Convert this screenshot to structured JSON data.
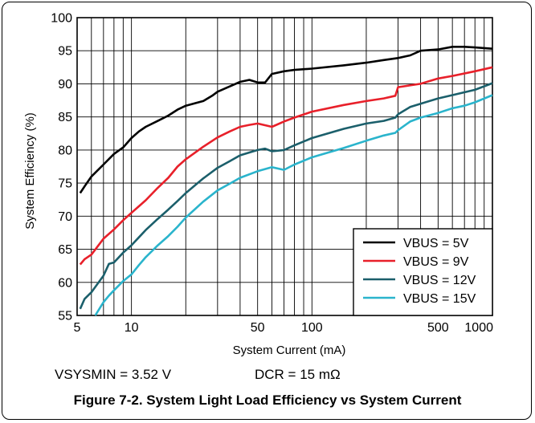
{
  "figure": {
    "notes": [
      "VSYSMIN = 3.52 V",
      "DCR = 15 mΩ"
    ],
    "caption": "Figure 7-2. System Light Load Efficiency vs System Current"
  },
  "chart_data": {
    "type": "line",
    "title": "",
    "xlabel": "System Current (mA)",
    "ylabel": "System Efficiency (%)",
    "xscale": "log",
    "xlim": [
      5,
      1000
    ],
    "ylim": [
      55,
      100
    ],
    "xticks": [
      5,
      10,
      50,
      100,
      500,
      1000
    ],
    "yticks": [
      55,
      60,
      65,
      70,
      75,
      80,
      85,
      90,
      95,
      100
    ],
    "grid": true,
    "legend": "bottom-right",
    "series": [
      {
        "name": "VBUS = 5V",
        "color": "#000000",
        "points": [
          [
            5.2,
            73.5
          ],
          [
            5.5,
            74.5
          ],
          [
            6,
            76
          ],
          [
            7,
            77.8
          ],
          [
            8,
            79.4
          ],
          [
            9,
            80.4
          ],
          [
            10,
            81.8
          ],
          [
            11,
            82.8
          ],
          [
            12,
            83.5
          ],
          [
            14,
            84.4
          ],
          [
            16,
            85.2
          ],
          [
            18,
            86.1
          ],
          [
            20,
            86.7
          ],
          [
            25,
            87.4
          ],
          [
            28,
            88.2
          ],
          [
            30,
            88.8
          ],
          [
            35,
            89.6
          ],
          [
            40,
            90.3
          ],
          [
            45,
            90.6
          ],
          [
            50,
            90.2
          ],
          [
            55,
            90.2
          ],
          [
            60,
            91.5
          ],
          [
            70,
            91.9
          ],
          [
            80,
            92.1
          ],
          [
            100,
            92.3
          ],
          [
            150,
            92.8
          ],
          [
            200,
            93.2
          ],
          [
            250,
            93.6
          ],
          [
            300,
            93.9
          ],
          [
            350,
            94.3
          ],
          [
            400,
            95
          ],
          [
            500,
            95.2
          ],
          [
            600,
            95.6
          ],
          [
            700,
            95.6
          ],
          [
            800,
            95.5
          ],
          [
            1000,
            95.3
          ]
        ]
      },
      {
        "name": "VBUS = 9V",
        "color": "#e8202a",
        "points": [
          [
            5.2,
            62.7
          ],
          [
            5.5,
            63.5
          ],
          [
            6,
            64.2
          ],
          [
            7,
            66.6
          ],
          [
            8,
            68
          ],
          [
            9,
            69.4
          ],
          [
            10,
            70.5
          ],
          [
            11,
            71.5
          ],
          [
            12,
            72.4
          ],
          [
            14,
            74.3
          ],
          [
            16,
            75.8
          ],
          [
            18,
            77.5
          ],
          [
            20,
            78.6
          ],
          [
            25,
            80.5
          ],
          [
            30,
            81.9
          ],
          [
            35,
            82.8
          ],
          [
            40,
            83.5
          ],
          [
            45,
            83.8
          ],
          [
            50,
            84
          ],
          [
            60,
            83.5
          ],
          [
            70,
            84.3
          ],
          [
            80,
            84.9
          ],
          [
            100,
            85.8
          ],
          [
            150,
            86.8
          ],
          [
            200,
            87.4
          ],
          [
            250,
            87.8
          ],
          [
            290,
            88.2
          ],
          [
            300,
            89.5
          ],
          [
            400,
            90
          ],
          [
            500,
            90.8
          ],
          [
            600,
            91.2
          ],
          [
            800,
            91.9
          ],
          [
            1000,
            92.5
          ]
        ]
      },
      {
        "name": "VBUS = 12V",
        "color": "#1b5f6b",
        "points": [
          [
            5.2,
            56
          ],
          [
            5.5,
            57.5
          ],
          [
            6,
            58.5
          ],
          [
            7,
            61
          ],
          [
            7.5,
            62.8
          ],
          [
            8,
            63
          ],
          [
            9,
            64.5
          ],
          [
            10,
            65.6
          ],
          [
            11,
            66.8
          ],
          [
            12,
            67.9
          ],
          [
            14,
            69.6
          ],
          [
            16,
            71
          ],
          [
            18,
            72.3
          ],
          [
            20,
            73.5
          ],
          [
            25,
            75.7
          ],
          [
            30,
            77.3
          ],
          [
            35,
            78.3
          ],
          [
            40,
            79.2
          ],
          [
            50,
            80
          ],
          [
            55,
            80.2
          ],
          [
            60,
            79.8
          ],
          [
            70,
            80
          ],
          [
            80,
            80.7
          ],
          [
            100,
            81.8
          ],
          [
            150,
            83.2
          ],
          [
            200,
            84
          ],
          [
            250,
            84.4
          ],
          [
            290,
            84.9
          ],
          [
            300,
            85.4
          ],
          [
            350,
            86.5
          ],
          [
            400,
            87
          ],
          [
            500,
            87.8
          ],
          [
            600,
            88.3
          ],
          [
            800,
            89.1
          ],
          [
            1000,
            90.1
          ]
        ]
      },
      {
        "name": "VBUS = 15V",
        "color": "#2ab4cc",
        "points": [
          [
            6.3,
            55
          ],
          [
            7,
            57
          ],
          [
            7.5,
            58
          ],
          [
            8,
            58.8
          ],
          [
            9,
            60.2
          ],
          [
            10,
            61.2
          ],
          [
            11,
            62.6
          ],
          [
            12,
            63.8
          ],
          [
            14,
            65.6
          ],
          [
            16,
            67
          ],
          [
            18,
            68.4
          ],
          [
            20,
            69.8
          ],
          [
            25,
            72.2
          ],
          [
            30,
            73.9
          ],
          [
            35,
            74.9
          ],
          [
            40,
            75.8
          ],
          [
            50,
            76.8
          ],
          [
            60,
            77.4
          ],
          [
            70,
            77
          ],
          [
            80,
            77.8
          ],
          [
            100,
            78.9
          ],
          [
            150,
            80.3
          ],
          [
            200,
            81.4
          ],
          [
            250,
            82.2
          ],
          [
            290,
            82.6
          ],
          [
            300,
            83
          ],
          [
            350,
            84.3
          ],
          [
            400,
            84.9
          ],
          [
            500,
            85.6
          ],
          [
            600,
            86.3
          ],
          [
            700,
            86.7
          ],
          [
            800,
            87.2
          ],
          [
            1000,
            88.3
          ]
        ]
      }
    ]
  }
}
